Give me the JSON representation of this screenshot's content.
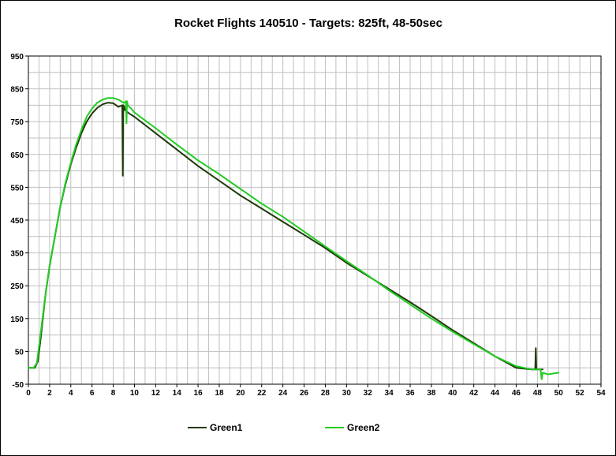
{
  "chart_data": {
    "type": "line",
    "title": "Rocket Flights 140510 - Targets: 825ft, 48-50sec",
    "xlabel": "",
    "ylabel": "",
    "xlim": [
      0,
      54
    ],
    "ylim": [
      -50,
      950
    ],
    "x_ticks": [
      "0",
      "2",
      "4",
      "6",
      "8",
      "10",
      "12",
      "14",
      "16",
      "18",
      "20",
      "22",
      "24",
      "26",
      "28",
      "30",
      "32",
      "34",
      "36",
      "38",
      "40",
      "42",
      "44",
      "46",
      "48",
      "50",
      "52",
      "54"
    ],
    "y_ticks": [
      "950",
      "850",
      "750",
      "650",
      "550",
      "450",
      "350",
      "250",
      "150",
      "50",
      "-50"
    ],
    "x_minor_step": 1,
    "grid": true,
    "legend_position": "bottom",
    "series": [
      {
        "name": "Green1",
        "color": "#1f3a08",
        "x": [
          0,
          0.6,
          0.9,
          1.2,
          1.6,
          2.0,
          2.5,
          3.0,
          3.5,
          4.0,
          4.5,
          5.0,
          5.5,
          6.0,
          6.5,
          7.0,
          7.5,
          8.0,
          8.5,
          8.85,
          8.9,
          8.95,
          9.05,
          9.1,
          9.5,
          10,
          12,
          14,
          16,
          18,
          20,
          22,
          24,
          26,
          28,
          30,
          32,
          34,
          36,
          38,
          40,
          42,
          44,
          46,
          47.5,
          47.8,
          47.85,
          47.9,
          48.0,
          48.5
        ],
        "y": [
          0,
          0,
          20,
          100,
          220,
          310,
          400,
          490,
          560,
          620,
          670,
          715,
          750,
          775,
          792,
          803,
          808,
          806,
          795,
          800,
          585,
          800,
          795,
          785,
          775,
          765,
          715,
          665,
          615,
          570,
          525,
          485,
          445,
          405,
          365,
          320,
          280,
          240,
          200,
          158,
          115,
          75,
          35,
          0,
          -5,
          -5,
          60,
          -5,
          -5,
          -5
        ]
      },
      {
        "name": "Green2",
        "color": "#22cc22",
        "x": [
          0,
          0.5,
          0.8,
          1.1,
          1.6,
          2.0,
          2.5,
          3.0,
          3.5,
          4.0,
          4.5,
          5.0,
          5.5,
          6.0,
          6.5,
          7.0,
          7.5,
          8.0,
          8.5,
          9.0,
          9.2,
          9.25,
          9.3,
          9.4,
          9.7,
          10,
          12,
          14,
          16,
          18,
          20,
          22,
          24,
          26,
          28,
          30,
          32,
          34,
          36,
          38,
          40,
          42,
          44,
          46,
          47.5,
          48.3,
          48.4,
          48.5,
          49,
          50
        ],
        "y": [
          0,
          0,
          15,
          90,
          220,
          310,
          400,
          490,
          565,
          625,
          680,
          725,
          765,
          790,
          808,
          817,
          822,
          822,
          817,
          807,
          812,
          745,
          812,
          798,
          790,
          778,
          730,
          680,
          632,
          590,
          545,
          500,
          460,
          415,
          370,
          325,
          282,
          236,
          193,
          150,
          110,
          72,
          35,
          5,
          -5,
          -5,
          -35,
          -15,
          -20,
          -15
        ]
      }
    ]
  }
}
